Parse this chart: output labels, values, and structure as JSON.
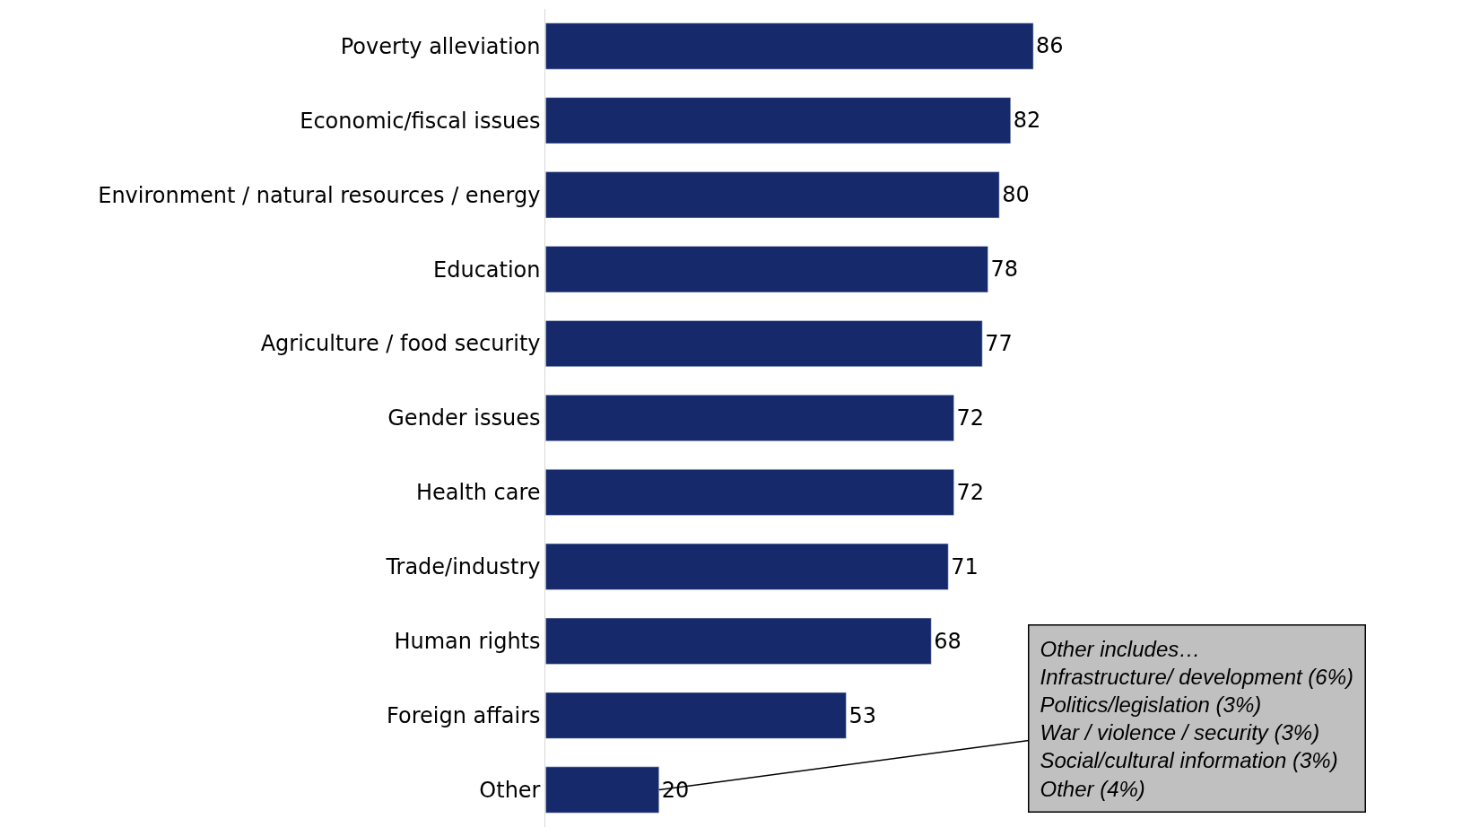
{
  "chart_data": {
    "type": "bar",
    "orientation": "horizontal",
    "categories": [
      "Poverty alleviation",
      "Economic/fiscal issues",
      "Environment / natural resources / energy",
      "Education",
      "Agriculture / food security",
      "Gender issues",
      "Health care",
      "Trade/industry",
      "Human rights",
      "Foreign affairs",
      "Other"
    ],
    "values": [
      86,
      82,
      80,
      78,
      77,
      72,
      72,
      71,
      68,
      53,
      20
    ],
    "color": "#15296b",
    "data_labels": true,
    "legend": false,
    "annotations": [
      {
        "text": "Other includes…\nInfrastructure/ development (6%)\nPolitics/legislation (3%)\nWar / violence / security (3%)\nSocial/cultural information (3%)\nOther (4%)",
        "x": 20,
        "y": "Other"
      }
    ]
  }
}
